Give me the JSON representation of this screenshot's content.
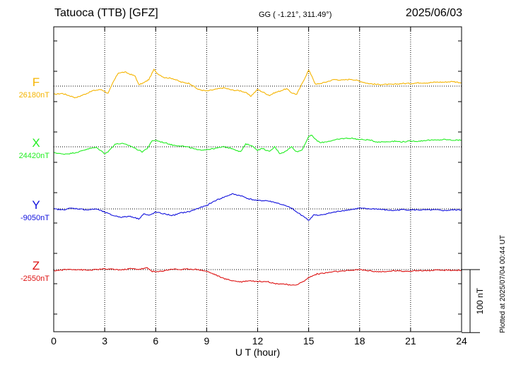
{
  "header": {
    "station": "Tatuoca (TTB)  [GFZ]",
    "coordinates": "GG ( -1.21°, 311.49°)",
    "date": "2025/06/03"
  },
  "plotted_note": "Plotted at 2025/07/04 00:44 UT",
  "scale_label": "100 nT",
  "chart_data": {
    "type": "line",
    "title": "Tatuoca (TTB)  [GFZ]",
    "xlabel": "U T (hour)",
    "xlim": [
      0,
      24
    ],
    "x_ticks": [
      "0",
      "3",
      "6",
      "9",
      "12",
      "15",
      "18",
      "21",
      "24"
    ],
    "grid": true,
    "scale_bar_nT": 100,
    "series": [
      {
        "name": "F",
        "base_label": "26180nT",
        "base_value": 26180,
        "color": "#f5b400",
        "x": [
          0,
          0.5,
          1,
          1.3,
          1.8,
          2.3,
          2.8,
          3.2,
          3.5,
          3.8,
          4.2,
          4.8,
          5,
          5.3,
          5.6,
          5.9,
          6.1,
          6.5,
          7,
          7.5,
          8,
          8.5,
          9,
          9.5,
          10,
          10.5,
          11,
          11.3,
          11.6,
          12,
          12.3,
          12.7,
          13,
          13.3,
          13.7,
          14,
          14.3,
          14.6,
          15,
          15.2,
          15.4,
          15.7,
          16,
          16.5,
          17,
          17.5,
          18,
          18.5,
          19,
          19.5,
          20,
          20.5,
          21,
          21.5,
          22,
          22.5,
          23,
          23.5,
          24
        ],
        "values": [
          -25,
          -22,
          -30,
          -35,
          -25,
          -14,
          -10,
          -22,
          12,
          40,
          42,
          30,
          4,
          10,
          20,
          50,
          38,
          26,
          23,
          12,
          8,
          -10,
          -15,
          -10,
          -5,
          -12,
          -14,
          -20,
          -30,
          -10,
          -18,
          -28,
          -20,
          -15,
          -8,
          -20,
          -25,
          6,
          48,
          30,
          5,
          8,
          12,
          20,
          18,
          21,
          15,
          8,
          5,
          5,
          5,
          8,
          8,
          10,
          10,
          12,
          12,
          14,
          10
        ]
      },
      {
        "name": "X",
        "base_label": "24420nT",
        "base_value": 24420,
        "color": "#22ee22",
        "x": [
          0,
          0.5,
          1,
          1.5,
          2,
          2.5,
          3,
          3.2,
          3.6,
          4,
          4.5,
          5,
          5.2,
          5.5,
          5.8,
          6,
          6.3,
          6.7,
          7,
          7.5,
          8,
          8.5,
          9,
          9.5,
          10,
          10.5,
          11,
          11.3,
          11.6,
          12,
          12.3,
          12.7,
          13,
          13.3,
          13.6,
          14,
          14.3,
          14.6,
          15,
          15.2,
          15.4,
          15.7,
          16,
          16.5,
          17,
          17.5,
          18,
          18.5,
          19,
          19.5,
          20,
          20.5,
          21,
          21.5,
          22,
          22.5,
          23,
          23.5,
          24
        ],
        "values": [
          -17,
          -22,
          -20,
          -15,
          -6,
          -2,
          -20,
          -15,
          8,
          10,
          3,
          -10,
          -15,
          -5,
          18,
          20,
          15,
          10,
          5,
          3,
          -2,
          -10,
          -8,
          -5,
          0,
          -5,
          -15,
          8,
          5,
          -10,
          -5,
          -15,
          0,
          -20,
          -15,
          0,
          -15,
          -10,
          30,
          35,
          22,
          12,
          15,
          20,
          25,
          26,
          22,
          21,
          15,
          15,
          17,
          15,
          17,
          17,
          20,
          20,
          22,
          20,
          20
        ]
      },
      {
        "name": "Y",
        "base_label": "-9050nT",
        "base_value": -9050,
        "color": "#1010dd",
        "x": [
          0,
          0.5,
          1,
          1.5,
          2,
          2.5,
          3,
          3.5,
          4,
          4.5,
          5,
          5.3,
          5.6,
          6,
          6.5,
          7,
          7.5,
          8,
          8.5,
          9,
          9.5,
          10,
          10.5,
          11,
          11.5,
          12,
          12.5,
          13,
          13.5,
          14,
          14.3,
          14.7,
          15,
          15.3,
          15.6,
          16,
          16.5,
          17,
          17.5,
          18,
          18.5,
          19,
          19.5,
          20,
          20.5,
          21,
          21.5,
          22,
          22.5,
          23,
          23.5,
          24
        ],
        "values": [
          0,
          -3,
          2,
          0,
          -3,
          0,
          -10,
          -20,
          -25,
          -22,
          -30,
          -15,
          -20,
          -10,
          -15,
          -20,
          -12,
          -8,
          2,
          10,
          25,
          35,
          45,
          40,
          30,
          25,
          25,
          20,
          12,
          2,
          -10,
          -22,
          -35,
          -18,
          -20,
          -15,
          -10,
          -5,
          -2,
          2,
          0,
          0,
          -3,
          -5,
          -2,
          -3,
          -3,
          -3,
          -3,
          -5,
          -3,
          -3
        ]
      },
      {
        "name": "Z",
        "base_label": "-2550nT",
        "base_value": -2550,
        "color": "#dd1111",
        "x": [
          0,
          0.3,
          0.7,
          1,
          1.5,
          2,
          2.5,
          3,
          3.5,
          4,
          4.5,
          5,
          5.5,
          5.8,
          6.1,
          6.5,
          7,
          7.5,
          8,
          8.5,
          9,
          9.5,
          10,
          10.5,
          11,
          11.5,
          12,
          12.5,
          13,
          13.5,
          14,
          14.3,
          14.7,
          15,
          15.5,
          16,
          16.5,
          17,
          17.5,
          18,
          18.5,
          19,
          19.5,
          20,
          20.5,
          21,
          21.5,
          22,
          22.5,
          23,
          23.5,
          24
        ],
        "values": [
          -3,
          -2,
          0,
          1,
          0,
          -2,
          0,
          2,
          1,
          -1,
          3,
          1,
          5,
          -5,
          -7,
          -3,
          2,
          0,
          2,
          0,
          -5,
          -15,
          -27,
          -33,
          -37,
          -33,
          -36,
          -35,
          -42,
          -43,
          -48,
          -45,
          -36,
          -24,
          -13,
          -10,
          -6,
          -5,
          -2,
          0,
          -3,
          -6,
          -7,
          -3,
          -5,
          -4,
          -3,
          -3,
          -2,
          -2,
          -2,
          -2
        ]
      }
    ]
  }
}
